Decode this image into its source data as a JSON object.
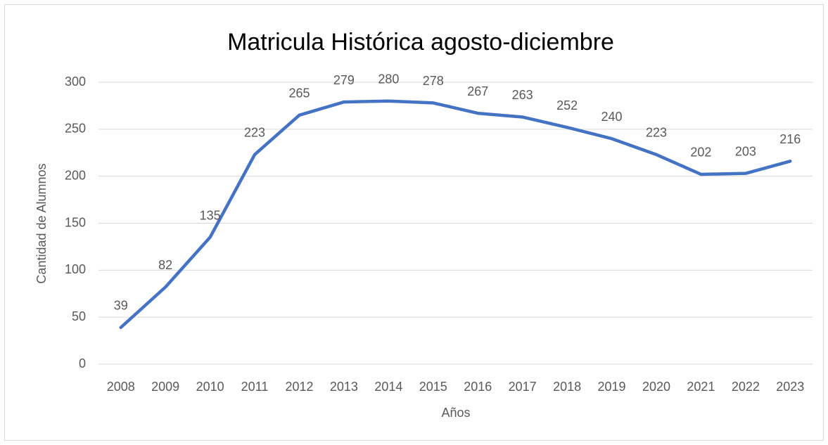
{
  "chart_data": {
    "type": "line",
    "title": "Matricula Histórica agosto-diciembre",
    "x_label": "Años",
    "y_label": "Cantidad de Alumnos",
    "categories": [
      "2008",
      "2009",
      "2010",
      "2011",
      "2012",
      "2013",
      "2014",
      "2015",
      "2016",
      "2017",
      "2018",
      "2019",
      "2020",
      "2021",
      "2022",
      "2023"
    ],
    "series": [
      {
        "name": "Matricula",
        "color": "#4472c4",
        "values": [
          39,
          82,
          135,
          223,
          265,
          279,
          280,
          278,
          267,
          263,
          252,
          240,
          223,
          202,
          203,
          216
        ]
      }
    ],
    "ylim": [
      0,
      300
    ],
    "yticks": [
      0,
      50,
      100,
      150,
      200,
      250,
      300
    ],
    "grid": true,
    "data_labels": true
  }
}
